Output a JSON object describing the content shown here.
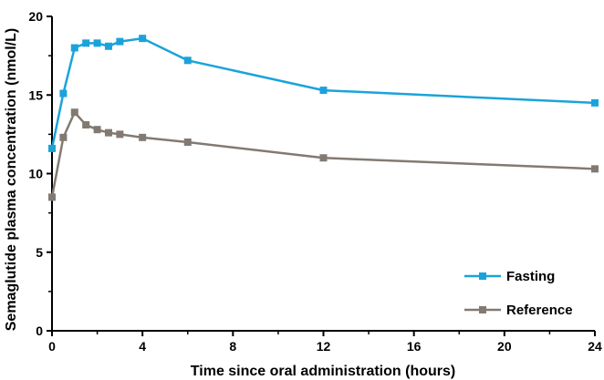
{
  "chart_data": {
    "type": "line",
    "title": "",
    "xlabel": "Time since oral administration (hours)",
    "ylabel": "Semaglutide plasma concentration (nmol/L)",
    "xlim": [
      0,
      24
    ],
    "ylim": [
      0,
      20
    ],
    "xticks": [
      0,
      4,
      8,
      12,
      16,
      20,
      24
    ],
    "yticks": [
      0,
      5,
      10,
      15,
      20
    ],
    "grid": false,
    "legend_position": "bottom-right",
    "series": [
      {
        "name": "Fasting",
        "color": "#1AA3DA",
        "x": [
          0,
          0.5,
          1,
          1.5,
          2,
          2.5,
          3,
          4,
          6,
          12,
          24
        ],
        "values": [
          11.6,
          15.1,
          18.0,
          18.3,
          18.3,
          18.1,
          18.4,
          18.6,
          17.2,
          15.3,
          14.5
        ]
      },
      {
        "name": "Reference",
        "color": "#827A72",
        "x": [
          0,
          0.5,
          1,
          1.5,
          2,
          2.5,
          3,
          4,
          6,
          12,
          24
        ],
        "values": [
          8.5,
          12.3,
          13.9,
          13.1,
          12.8,
          12.6,
          12.5,
          12.3,
          12.0,
          11.0,
          10.3
        ]
      }
    ]
  }
}
